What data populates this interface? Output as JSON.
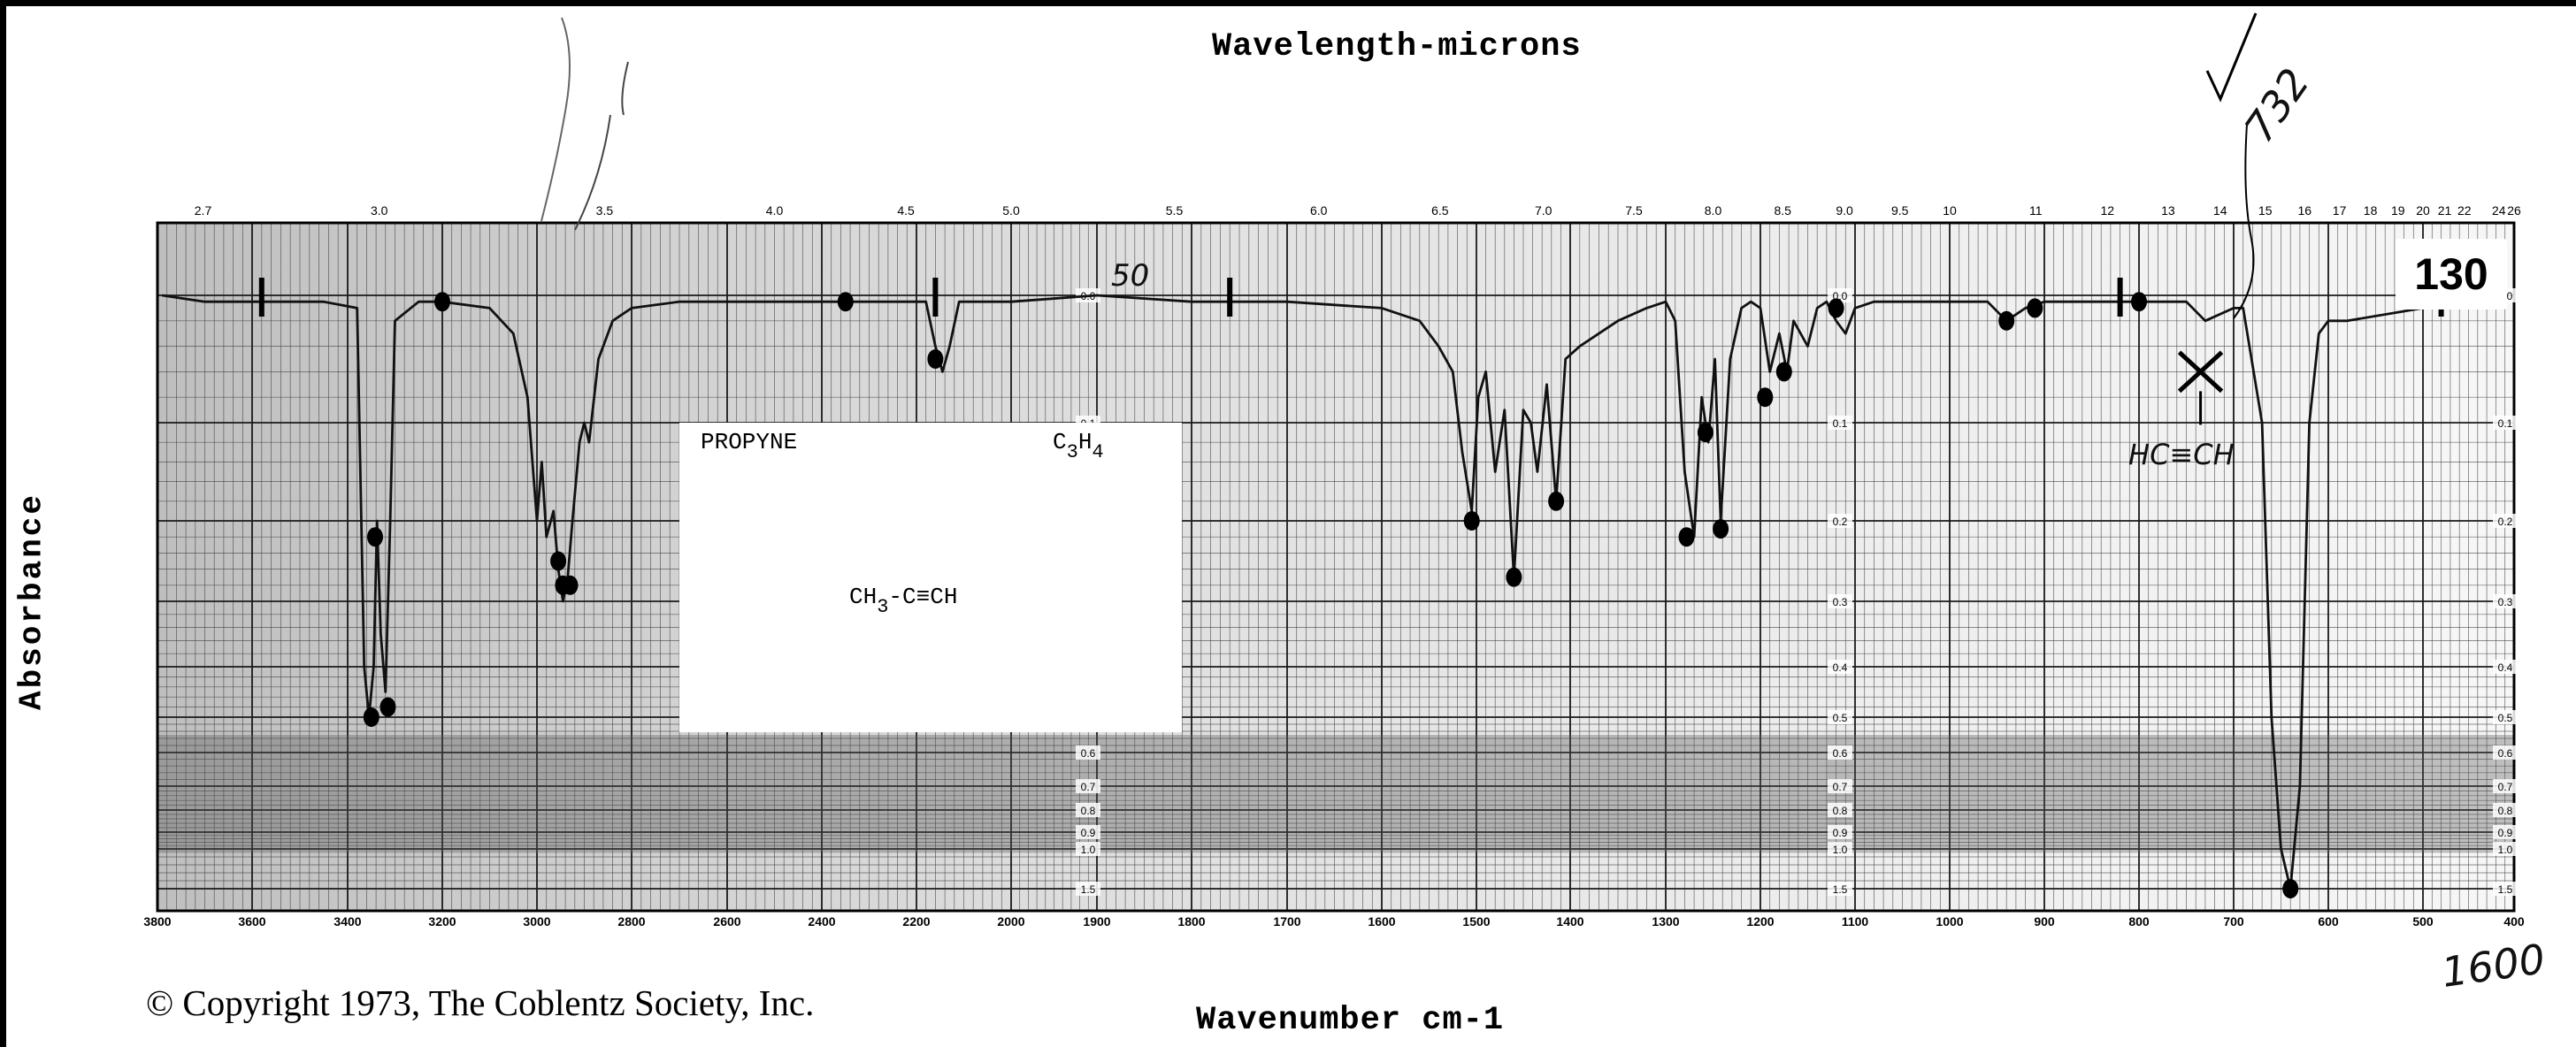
{
  "header": {
    "top_axis_title": "Wavelength-microns",
    "bottom_axis_title": "Wavenumber cm-1",
    "y_axis_title": "Absorbance"
  },
  "footer": {
    "copyright": "© Copyright 1973, The Coblentz Society, Inc."
  },
  "compound": {
    "name": "PROPYNE",
    "formula": "C3H4",
    "formula_main": "C",
    "formula_sub1": "3",
    "formula_mid": "H",
    "formula_sub2": "4",
    "structure_a": "CH",
    "structure_sub": "3",
    "structure_b": "-C≡CH"
  },
  "page_number": "130",
  "annotations": {
    "note_50": "50",
    "note_732": "732",
    "note_hcch": "HC≡CH",
    "note_1600": "1600"
  },
  "colors": {
    "trace": "#111111",
    "grid": "#2a2a2a",
    "background": "#ffffff"
  },
  "chart_data": {
    "type": "line",
    "title": "",
    "xlabel": "Wavenumber cm-1",
    "ylabel": "Absorbance",
    "x_direction": "decreasing",
    "xlim": [
      3800,
      400
    ],
    "ylim": [
      0,
      1.5
    ],
    "y_scale": "absorbance (nonlinear)",
    "grid": true,
    "x_ticks": [
      "3800",
      "3600",
      "3400",
      "3200",
      "3000",
      "2800",
      "2600",
      "2400",
      "2200",
      "2000",
      "1900",
      "1800",
      "1700",
      "1600",
      "1500",
      "1400",
      "1300",
      "1200",
      "1100",
      "1000",
      "900",
      "800",
      "700",
      "600",
      "500",
      "400"
    ],
    "top_ticks": [
      "2.7",
      "3.0",
      "3.5",
      "4.0",
      "4.5",
      "5.0",
      "5.5",
      "6.0",
      "6.5",
      "7.0",
      "7.5",
      "8.0",
      "8.5",
      "9.0",
      "9.5",
      "10",
      "11",
      "12",
      "13",
      "14",
      "15",
      "16",
      "17",
      "18",
      "19",
      "20",
      "21",
      "22",
      "24",
      "26"
    ],
    "top_tick_values": [
      2.7,
      3.0,
      3.5,
      4.0,
      4.5,
      5.0,
      5.5,
      6.0,
      6.5,
      7.0,
      7.5,
      8.0,
      8.5,
      9.0,
      9.5,
      10,
      11,
      12,
      13,
      14,
      15,
      16,
      17,
      18,
      19,
      20,
      21,
      22,
      24,
      26
    ],
    "y_ticks": [
      "0.0",
      "0.1",
      "0.2",
      "0.3",
      "0.4",
      "0.5",
      "0.6",
      "0.7",
      "0.8",
      "0.9",
      "1.0",
      "1.5"
    ],
    "y_tick_values": [
      0.0,
      0.1,
      0.2,
      0.3,
      0.4,
      0.5,
      0.6,
      0.7,
      0.8,
      0.9,
      1.0,
      1.5
    ],
    "series": [
      {
        "points": [
          [
            3790,
            0.0
          ],
          [
            3700,
            0.005
          ],
          [
            3600,
            0.005
          ],
          [
            3450,
            0.005
          ],
          [
            3380,
            0.01
          ],
          [
            3365,
            0.4
          ],
          [
            3355,
            0.5
          ],
          [
            3345,
            0.4
          ],
          [
            3338,
            0.2
          ],
          [
            3330,
            0.35
          ],
          [
            3320,
            0.45
          ],
          [
            3310,
            0.2
          ],
          [
            3300,
            0.02
          ],
          [
            3250,
            0.005
          ],
          [
            3200,
            0.005
          ],
          [
            3100,
            0.01
          ],
          [
            3050,
            0.03
          ],
          [
            3020,
            0.08
          ],
          [
            3000,
            0.2
          ],
          [
            2990,
            0.14
          ],
          [
            2980,
            0.22
          ],
          [
            2965,
            0.19
          ],
          [
            2955,
            0.26
          ],
          [
            2945,
            0.3
          ],
          [
            2935,
            0.27
          ],
          [
            2925,
            0.2
          ],
          [
            2910,
            0.12
          ],
          [
            2900,
            0.1
          ],
          [
            2890,
            0.12
          ],
          [
            2870,
            0.05
          ],
          [
            2840,
            0.02
          ],
          [
            2800,
            0.01
          ],
          [
            2700,
            0.005
          ],
          [
            2500,
            0.005
          ],
          [
            2350,
            0.005
          ],
          [
            2250,
            0.005
          ],
          [
            2180,
            0.005
          ],
          [
            2160,
            0.04
          ],
          [
            2145,
            0.06
          ],
          [
            2130,
            0.04
          ],
          [
            2110,
            0.005
          ],
          [
            2000,
            0.005
          ],
          [
            1900,
            0.0
          ],
          [
            1800,
            0.005
          ],
          [
            1700,
            0.005
          ],
          [
            1600,
            0.01
          ],
          [
            1560,
            0.02
          ],
          [
            1540,
            0.04
          ],
          [
            1525,
            0.06
          ],
          [
            1515,
            0.13
          ],
          [
            1505,
            0.19
          ],
          [
            1498,
            0.08
          ],
          [
            1490,
            0.06
          ],
          [
            1480,
            0.15
          ],
          [
            1470,
            0.09
          ],
          [
            1460,
            0.27
          ],
          [
            1450,
            0.09
          ],
          [
            1442,
            0.1
          ],
          [
            1435,
            0.15
          ],
          [
            1425,
            0.07
          ],
          [
            1415,
            0.18
          ],
          [
            1405,
            0.05
          ],
          [
            1390,
            0.04
          ],
          [
            1370,
            0.03
          ],
          [
            1350,
            0.02
          ],
          [
            1320,
            0.01
          ],
          [
            1300,
            0.005
          ],
          [
            1290,
            0.02
          ],
          [
            1280,
            0.15
          ],
          [
            1270,
            0.22
          ],
          [
            1262,
            0.08
          ],
          [
            1255,
            0.12
          ],
          [
            1248,
            0.05
          ],
          [
            1242,
            0.2
          ],
          [
            1232,
            0.05
          ],
          [
            1220,
            0.01
          ],
          [
            1210,
            0.005
          ],
          [
            1200,
            0.01
          ],
          [
            1190,
            0.06
          ],
          [
            1180,
            0.03
          ],
          [
            1172,
            0.06
          ],
          [
            1165,
            0.02
          ],
          [
            1150,
            0.04
          ],
          [
            1140,
            0.01
          ],
          [
            1130,
            0.005
          ],
          [
            1120,
            0.02
          ],
          [
            1110,
            0.03
          ],
          [
            1100,
            0.01
          ],
          [
            1080,
            0.005
          ],
          [
            1000,
            0.005
          ],
          [
            960,
            0.005
          ],
          [
            940,
            0.02
          ],
          [
            920,
            0.01
          ],
          [
            900,
            0.005
          ],
          [
            850,
            0.005
          ],
          [
            800,
            0.005
          ],
          [
            750,
            0.005
          ],
          [
            730,
            0.02
          ],
          [
            700,
            0.01
          ],
          [
            690,
            0.01
          ],
          [
            670,
            0.1
          ],
          [
            660,
            0.5
          ],
          [
            650,
            1.0
          ],
          [
            640,
            1.5
          ],
          [
            630,
            0.7
          ],
          [
            620,
            0.1
          ],
          [
            610,
            0.03
          ],
          [
            600,
            0.02
          ],
          [
            580,
            0.02
          ],
          [
            500,
            0.01
          ],
          [
            450,
            0.01
          ],
          [
            440,
            0.0
          ]
        ]
      }
    ],
    "markers": [
      {
        "x": 3350,
        "y": 0.5
      },
      {
        "x": 3315,
        "y": 0.48
      },
      {
        "x": 3342,
        "y": 0.22
      },
      {
        "x": 3200,
        "y": 0.005
      },
      {
        "x": 2945,
        "y": 0.28
      },
      {
        "x": 2930,
        "y": 0.28
      },
      {
        "x": 2955,
        "y": 0.25
      },
      {
        "x": 2350,
        "y": 0.005
      },
      {
        "x": 2160,
        "y": 0.05
      },
      {
        "x": 1505,
        "y": 0.2
      },
      {
        "x": 1460,
        "y": 0.27
      },
      {
        "x": 1415,
        "y": 0.18
      },
      {
        "x": 1278,
        "y": 0.22
      },
      {
        "x": 1242,
        "y": 0.21
      },
      {
        "x": 1258,
        "y": 0.11
      },
      {
        "x": 1175,
        "y": 0.06
      },
      {
        "x": 1195,
        "y": 0.08
      },
      {
        "x": 1120,
        "y": 0.01
      },
      {
        "x": 940,
        "y": 0.02
      },
      {
        "x": 910,
        "y": 0.01
      },
      {
        "x": 800,
        "y": 0.005
      },
      {
        "x": 640,
        "y": 1.5
      }
    ]
  }
}
